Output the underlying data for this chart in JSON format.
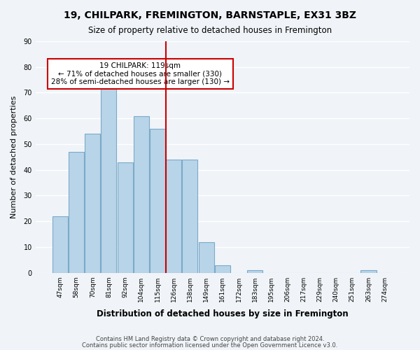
{
  "title": "19, CHILPARK, FREMINGTON, BARNSTAPLE, EX31 3BZ",
  "subtitle": "Size of property relative to detached houses in Fremington",
  "xlabel": "Distribution of detached houses by size in Fremington",
  "ylabel": "Number of detached properties",
  "bar_labels": [
    "47sqm",
    "58sqm",
    "70sqm",
    "81sqm",
    "92sqm",
    "104sqm",
    "115sqm",
    "126sqm",
    "138sqm",
    "149sqm",
    "161sqm",
    "172sqm",
    "183sqm",
    "195sqm",
    "206sqm",
    "217sqm",
    "229sqm",
    "240sqm",
    "251sqm",
    "263sqm",
    "274sqm"
  ],
  "bar_values": [
    22,
    47,
    54,
    73,
    43,
    61,
    56,
    44,
    44,
    12,
    3,
    0,
    1,
    0,
    0,
    0,
    0,
    0,
    0,
    1,
    0
  ],
  "bar_color": "#b8d4e8",
  "bar_edge_color": "#7aaac8",
  "ylim": [
    0,
    90
  ],
  "yticks": [
    0,
    10,
    20,
    30,
    40,
    50,
    60,
    70,
    80,
    90
  ],
  "property_line_x": 7,
  "property_line_color": "#cc0000",
  "annotation_title": "19 CHILPARK: 119sqm",
  "annotation_line1": "← 71% of detached houses are smaller (330)",
  "annotation_line2": "28% of semi-detached houses are larger (130) →",
  "annotation_box_color": "#ffffff",
  "annotation_box_edge": "#cc0000",
  "footer_line1": "Contains HM Land Registry data © Crown copyright and database right 2024.",
  "footer_line2": "Contains public sector information licensed under the Open Government Licence v3.0.",
  "background_color": "#f0f4f8",
  "grid_color": "#ffffff"
}
